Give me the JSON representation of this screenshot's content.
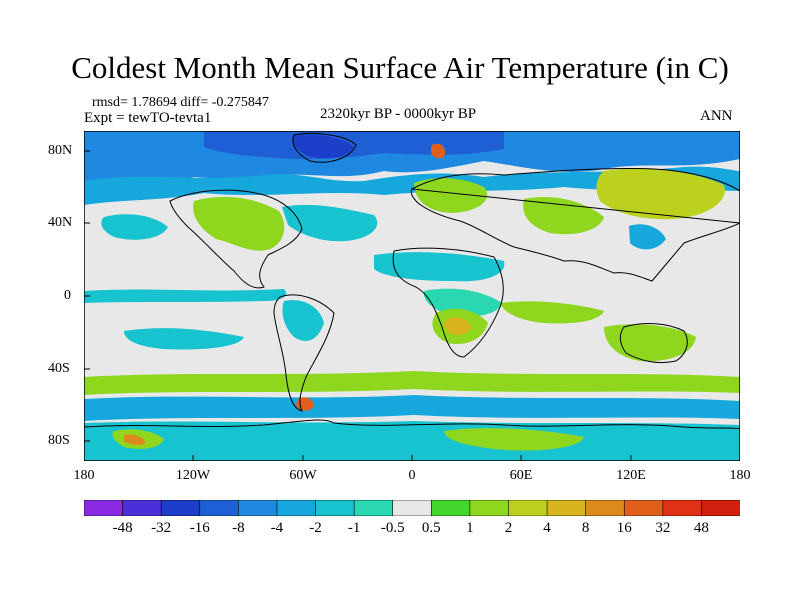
{
  "title": "Coldest Month Mean Surface Air Temperature (in C)",
  "stats": {
    "rmsd_text": "rmsd= 1.78694 diff= -0.275847"
  },
  "experiment": {
    "label": "Expt = tewTO-tevta1"
  },
  "period": {
    "label": "2320kyr BP - 0000kyr BP"
  },
  "season": {
    "label": "ANN"
  },
  "axes": {
    "lat_labels": [
      "80N",
      "40N",
      "0",
      "40S",
      "80S"
    ],
    "lon_labels": [
      "180",
      "120W",
      "60W",
      "0",
      "60E",
      "120E",
      "180"
    ]
  },
  "colorbar": {
    "labels": [
      "-48",
      "-32",
      "-16",
      "-8",
      "-4",
      "-2",
      "-1",
      "-0.5",
      "0.5",
      "1",
      "2",
      "4",
      "8",
      "16",
      "32",
      "48"
    ],
    "colors": [
      "#8a2be2",
      "#4a2ed8",
      "#1c3ec8",
      "#1f5fd6",
      "#1f88e0",
      "#16a7dc",
      "#18c3d0",
      "#2bd7b0",
      "#e8e8e8",
      "#43d62c",
      "#8fd61e",
      "#bcd01e",
      "#d7b31f",
      "#dd8a1c",
      "#e05f1a",
      "#e03015",
      "#d11e0f"
    ]
  }
}
